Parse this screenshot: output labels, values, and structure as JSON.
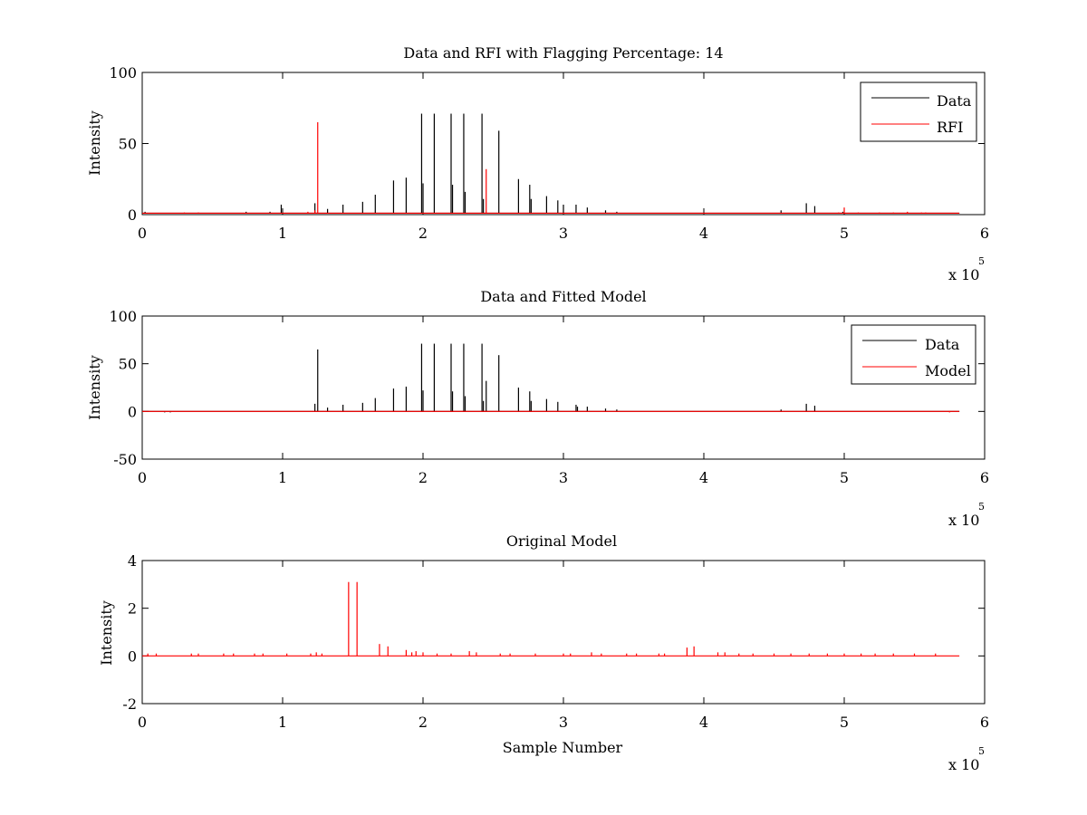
{
  "figure": {
    "background": "#ffffff",
    "axes_color": "#000000"
  },
  "chart_data": [
    {
      "type": "line",
      "title": "Data and RFI with Flagging Percentage: 14",
      "xlabel": "",
      "ylabel": "Intensity",
      "xlim": [
        0,
        6
      ],
      "ylim": [
        0,
        100
      ],
      "xticks": [
        "0",
        "1",
        "2",
        "3",
        "4",
        "5",
        "6"
      ],
      "yticks": [
        "0",
        "50",
        "100"
      ],
      "x_exponent": {
        "base": "x 10",
        "power": "5"
      },
      "legend": {
        "position": "top-right",
        "entries": [
          "Data",
          "RFI"
        ]
      },
      "series": [
        {
          "name": "Data",
          "color": "#000000",
          "baseline": 1,
          "spikes": [
            [
              0.02,
              2
            ],
            [
              0.74,
              2
            ],
            [
              0.91,
              2
            ],
            [
              0.99,
              7
            ],
            [
              1.23,
              8
            ],
            [
              1.32,
              4
            ],
            [
              1.43,
              7
            ],
            [
              1.57,
              9
            ],
            [
              1.66,
              14
            ],
            [
              1.79,
              24
            ],
            [
              1.88,
              26
            ],
            [
              1.99,
              71
            ],
            [
              2.0,
              22
            ],
            [
              2.08,
              71
            ],
            [
              2.2,
              71
            ],
            [
              2.21,
              21
            ],
            [
              2.29,
              71
            ],
            [
              2.3,
              16
            ],
            [
              2.42,
              71
            ],
            [
              2.43,
              11
            ],
            [
              2.54,
              59
            ],
            [
              2.68,
              25
            ],
            [
              2.76,
              21
            ],
            [
              2.77,
              11
            ],
            [
              2.88,
              13
            ],
            [
              2.96,
              10
            ],
            [
              3.0,
              7
            ],
            [
              3.09,
              7
            ],
            [
              3.17,
              5
            ],
            [
              3.3,
              3
            ],
            [
              3.38,
              2
            ],
            [
              4.55,
              3
            ],
            [
              4.73,
              8
            ],
            [
              4.79,
              6
            ],
            [
              4.99,
              2
            ]
          ]
        },
        {
          "name": "RFI",
          "color": "#ff0000",
          "baseline": 1,
          "spikes": [
            [
              0.3,
              1.5
            ],
            [
              0.4,
              1.5
            ],
            [
              1.18,
              2
            ],
            [
              1.23,
              3
            ],
            [
              1.25,
              65
            ],
            [
              2.45,
              32
            ],
            [
              4.96,
              1.5
            ],
            [
              5.0,
              5
            ],
            [
              5.1,
              1.5
            ],
            [
              5.25,
              1.5
            ],
            [
              5.35,
              1.5
            ],
            [
              5.45,
              2
            ],
            [
              5.55,
              1.5
            ],
            [
              5.58,
              1.5
            ]
          ]
        }
      ]
    },
    {
      "type": "line",
      "title": "Data and Fitted Model",
      "xlabel": "",
      "ylabel": "Intensity",
      "xlim": [
        0,
        6
      ],
      "ylim": [
        -50,
        100
      ],
      "xticks": [
        "0",
        "1",
        "2",
        "3",
        "4",
        "5",
        "6"
      ],
      "yticks": [
        "-50",
        "0",
        "50",
        "100"
      ],
      "x_exponent": {
        "base": "x 10",
        "power": "5"
      },
      "legend": {
        "position": "top-right",
        "entries": [
          "Data",
          "Model"
        ]
      },
      "series": [
        {
          "name": "Data",
          "color": "#000000",
          "baseline": 0,
          "spikes": [
            [
              0.16,
              -1
            ],
            [
              0.2,
              -1
            ],
            [
              1.23,
              8
            ],
            [
              1.25,
              65
            ],
            [
              1.32,
              4
            ],
            [
              1.43,
              7
            ],
            [
              1.57,
              9
            ],
            [
              1.66,
              14
            ],
            [
              1.79,
              24
            ],
            [
              1.88,
              26
            ],
            [
              1.99,
              71
            ],
            [
              2.0,
              22
            ],
            [
              2.08,
              71
            ],
            [
              2.2,
              71
            ],
            [
              2.21,
              21
            ],
            [
              2.29,
              71
            ],
            [
              2.3,
              16
            ],
            [
              2.42,
              71
            ],
            [
              2.43,
              11
            ],
            [
              2.45,
              32
            ],
            [
              2.54,
              59
            ],
            [
              2.68,
              25
            ],
            [
              2.76,
              21
            ],
            [
              2.77,
              11
            ],
            [
              2.88,
              13
            ],
            [
              2.96,
              10
            ],
            [
              3.09,
              7
            ],
            [
              3.1,
              5
            ],
            [
              3.17,
              5
            ],
            [
              3.3,
              3
            ],
            [
              3.38,
              2
            ],
            [
              4.55,
              2
            ],
            [
              4.73,
              8
            ],
            [
              4.79,
              6
            ]
          ]
        },
        {
          "name": "Model",
          "color": "#ff0000",
          "baseline": 0,
          "spikes": [
            [
              0.05,
              0.5
            ],
            [
              5.75,
              -1
            ]
          ]
        }
      ]
    },
    {
      "type": "line",
      "title": "Original Model",
      "xlabel": "Sample Number",
      "ylabel": "Intensity",
      "xlim": [
        0,
        6
      ],
      "ylim": [
        -2,
        4
      ],
      "xticks": [
        "0",
        "1",
        "2",
        "3",
        "4",
        "5",
        "6"
      ],
      "yticks": [
        "-2",
        "0",
        "2",
        "4"
      ],
      "x_exponent": {
        "base": "x 10",
        "power": "5"
      },
      "series": [
        {
          "name": "",
          "color": "#ff0000",
          "baseline": 0,
          "spikes": [
            [
              0.04,
              0.1
            ],
            [
              0.1,
              0.1
            ],
            [
              0.35,
              0.1
            ],
            [
              0.4,
              0.1
            ],
            [
              0.58,
              0.1
            ],
            [
              0.65,
              0.1
            ],
            [
              0.8,
              0.1
            ],
            [
              0.86,
              0.1
            ],
            [
              1.03,
              0.1
            ],
            [
              1.2,
              0.1
            ],
            [
              1.24,
              0.15
            ],
            [
              1.28,
              0.1
            ],
            [
              1.47,
              3.1
            ],
            [
              1.53,
              3.1
            ],
            [
              1.69,
              0.5
            ],
            [
              1.75,
              0.4
            ],
            [
              1.88,
              0.25
            ],
            [
              1.92,
              0.15
            ],
            [
              1.95,
              0.2
            ],
            [
              2.0,
              0.15
            ],
            [
              2.1,
              0.1
            ],
            [
              2.2,
              0.1
            ],
            [
              2.33,
              0.2
            ],
            [
              2.38,
              0.15
            ],
            [
              2.55,
              0.1
            ],
            [
              2.62,
              0.1
            ],
            [
              2.8,
              0.1
            ],
            [
              3.0,
              0.1
            ],
            [
              3.05,
              0.1
            ],
            [
              3.2,
              0.15
            ],
            [
              3.27,
              0.1
            ],
            [
              3.45,
              0.1
            ],
            [
              3.52,
              0.1
            ],
            [
              3.68,
              0.1
            ],
            [
              3.72,
              0.1
            ],
            [
              3.88,
              0.35
            ],
            [
              3.93,
              0.4
            ],
            [
              4.1,
              0.15
            ],
            [
              4.15,
              0.15
            ],
            [
              4.25,
              0.1
            ],
            [
              4.35,
              0.1
            ],
            [
              4.5,
              0.1
            ],
            [
              4.62,
              0.1
            ],
            [
              4.75,
              0.1
            ],
            [
              4.88,
              0.1
            ],
            [
              5.0,
              0.1
            ],
            [
              5.12,
              0.1
            ],
            [
              5.22,
              0.1
            ],
            [
              5.35,
              0.1
            ],
            [
              5.5,
              0.1
            ],
            [
              5.65,
              0.1
            ]
          ]
        }
      ]
    }
  ]
}
